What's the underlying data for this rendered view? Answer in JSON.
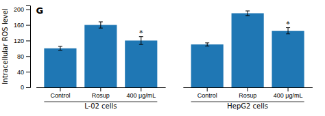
{
  "chart_data": {
    "type": "bar",
    "title": "G",
    "ylabel": "Intracellular ROS level",
    "groups": [
      "L-02 cells",
      "HepG2 cells"
    ],
    "categories": [
      "Control",
      "Rosup",
      "400 μg/mL"
    ],
    "values": [
      [
        100,
        160,
        120
      ],
      [
        110,
        190,
        145
      ]
    ],
    "errors": [
      [
        5,
        8,
        10
      ],
      [
        4,
        6,
        8
      ]
    ],
    "annotations": [
      {
        "text": "*",
        "group": "L-02 cells",
        "category": "400 μg/mL"
      },
      {
        "text": "*",
        "group": "HepG2 cells",
        "category": "400 μg/mL"
      }
    ],
    "ylim": [
      0,
      210
    ],
    "yticks": [
      0,
      40,
      80,
      120,
      160,
      200
    ],
    "grid": false
  }
}
